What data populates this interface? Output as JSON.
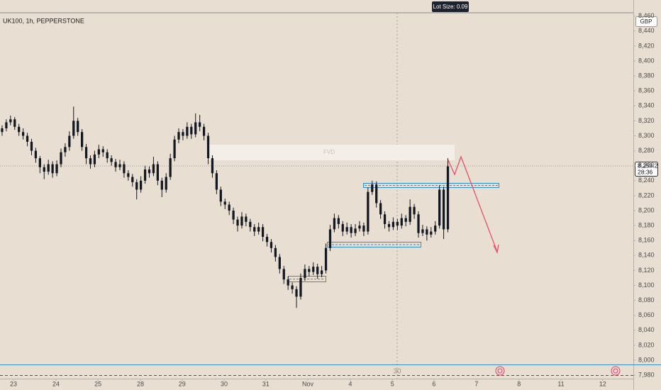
{
  "chart_data": {
    "type": "candlestick",
    "title": "UK100, 1h, PEPPERSTONE",
    "currency": "GBP",
    "lot_size_label": "Lot Size: 0.09",
    "last_price_label": "8,259.2",
    "countdown": "28:36",
    "zone_label": "FVD",
    "bottom_label": "30",
    "color": "#131722",
    "grid": false,
    "xlim": [
      0,
      150.6
    ],
    "ylim": [
      7975.4,
      8481.5
    ],
    "yticks": [
      {
        "value": 7980,
        "label": "7,980"
      },
      {
        "value": 8000,
        "label": "8,000"
      },
      {
        "value": 8020,
        "label": "8,020"
      },
      {
        "value": 8040,
        "label": "8,040"
      },
      {
        "value": 8060,
        "label": "8,060"
      },
      {
        "value": 8080,
        "label": "8,080"
      },
      {
        "value": 8100,
        "label": "8,100"
      },
      {
        "value": 8120,
        "label": "8,120"
      },
      {
        "value": 8140,
        "label": "8,140"
      },
      {
        "value": 8160,
        "label": "8,160"
      },
      {
        "value": 8180,
        "label": "8,180"
      },
      {
        "value": 8200,
        "label": "8,200"
      },
      {
        "value": 8220,
        "label": "8,220"
      },
      {
        "value": 8240,
        "label": "8,240"
      },
      {
        "value": 8260,
        "label": "8,260"
      },
      {
        "value": 8280,
        "label": "8,280"
      },
      {
        "value": 8300,
        "label": "8,300"
      },
      {
        "value": 8320,
        "label": "8,320"
      },
      {
        "value": 8340,
        "label": "8,340"
      },
      {
        "value": 8360,
        "label": "8,360"
      },
      {
        "value": 8380,
        "label": "8,380"
      },
      {
        "value": 8400,
        "label": "8,400"
      },
      {
        "value": 8420,
        "label": "8,420"
      },
      {
        "value": 8440,
        "label": "8,440"
      },
      {
        "value": 8460,
        "label": "8,460"
      }
    ],
    "xticks": [
      {
        "value": 3.2,
        "label": "23"
      },
      {
        "value": 13.3,
        "label": "24"
      },
      {
        "value": 23.3,
        "label": "25"
      },
      {
        "value": 33.4,
        "label": "28"
      },
      {
        "value": 43.3,
        "label": "29"
      },
      {
        "value": 53.3,
        "label": "30"
      },
      {
        "value": 63.2,
        "label": "31"
      },
      {
        "value": 73.2,
        "label": "Nov"
      },
      {
        "value": 83.3,
        "label": "4"
      },
      {
        "value": 93.3,
        "label": "5"
      },
      {
        "value": 103.2,
        "label": "6"
      },
      {
        "value": 113.3,
        "label": "7"
      },
      {
        "value": 123.4,
        "label": "8"
      },
      {
        "value": 133.4,
        "label": "11"
      },
      {
        "value": 143.3,
        "label": "12"
      }
    ],
    "ohlc": [
      [
        8305,
        8314,
        8300,
        8310
      ],
      [
        8310,
        8322,
        8306,
        8318
      ],
      [
        8318,
        8327,
        8314,
        8322
      ],
      [
        8322,
        8325,
        8308,
        8312
      ],
      [
        8312,
        8316,
        8300,
        8305
      ],
      [
        8305,
        8310,
        8295,
        8300
      ],
      [
        8300,
        8304,
        8286,
        8292
      ],
      [
        8292,
        8296,
        8274,
        8280
      ],
      [
        8280,
        8284,
        8264,
        8270
      ],
      [
        8270,
        8273,
        8250,
        8258
      ],
      [
        8258,
        8262,
        8242,
        8252
      ],
      [
        8252,
        8268,
        8248,
        8262
      ],
      [
        8262,
        8266,
        8244,
        8250
      ],
      [
        8250,
        8267,
        8246,
        8262
      ],
      [
        8262,
        8283,
        8258,
        8278
      ],
      [
        8278,
        8290,
        8272,
        8285
      ],
      [
        8285,
        8306,
        8280,
        8300
      ],
      [
        8300,
        8339,
        8296,
        8320
      ],
      [
        8320,
        8324,
        8300,
        8305
      ],
      [
        8305,
        8309,
        8280,
        8285
      ],
      [
        8285,
        8289,
        8262,
        8270
      ],
      [
        8270,
        8274,
        8256,
        8262
      ],
      [
        8262,
        8280,
        8258,
        8275
      ],
      [
        8275,
        8288,
        8270,
        8282
      ],
      [
        8282,
        8286,
        8272,
        8278
      ],
      [
        8278,
        8282,
        8264,
        8270
      ],
      [
        8270,
        8274,
        8260,
        8265
      ],
      [
        8265,
        8269,
        8252,
        8258
      ],
      [
        8258,
        8268,
        8254,
        8262
      ],
      [
        8262,
        8266,
        8244,
        8250
      ],
      [
        8250,
        8254,
        8240,
        8245
      ],
      [
        8245,
        8249,
        8232,
        8238
      ],
      [
        8238,
        8242,
        8215,
        8228
      ],
      [
        8228,
        8246,
        8224,
        8240
      ],
      [
        8240,
        8260,
        8236,
        8255
      ],
      [
        8255,
        8259,
        8244,
        8250
      ],
      [
        8250,
        8272,
        8246,
        8262
      ],
      [
        8262,
        8266,
        8234,
        8240
      ],
      [
        8240,
        8244,
        8218,
        8228
      ],
      [
        8228,
        8250,
        8224,
        8245
      ],
      [
        8245,
        8276,
        8241,
        8270
      ],
      [
        8270,
        8300,
        8266,
        8295
      ],
      [
        8295,
        8310,
        8290,
        8305
      ],
      [
        8305,
        8309,
        8294,
        8300
      ],
      [
        8300,
        8318,
        8296,
        8312
      ],
      [
        8312,
        8316,
        8296,
        8302
      ],
      [
        8302,
        8330,
        8298,
        8318
      ],
      [
        8318,
        8328,
        8306,
        8312
      ],
      [
        8312,
        8316,
        8294,
        8300
      ],
      [
        8300,
        8304,
        8262,
        8270
      ],
      [
        8270,
        8274,
        8244,
        8250
      ],
      [
        8250,
        8254,
        8222,
        8228
      ],
      [
        8228,
        8232,
        8206,
        8212
      ],
      [
        8212,
        8216,
        8202,
        8208
      ],
      [
        8208,
        8212,
        8194,
        8200
      ],
      [
        8200,
        8204,
        8182,
        8188
      ],
      [
        8188,
        8192,
        8172,
        8180
      ],
      [
        8180,
        8198,
        8176,
        8192
      ],
      [
        8192,
        8196,
        8179,
        8185
      ],
      [
        8185,
        8189,
        8172,
        8178
      ],
      [
        8178,
        8182,
        8166,
        8172
      ],
      [
        8172,
        8184,
        8168,
        8178
      ],
      [
        8178,
        8182,
        8159,
        8165
      ],
      [
        8165,
        8169,
        8152,
        8158
      ],
      [
        8158,
        8162,
        8144,
        8150
      ],
      [
        8150,
        8154,
        8132,
        8138
      ],
      [
        8138,
        8142,
        8116,
        8122
      ],
      [
        8122,
        8126,
        8102,
        8108
      ],
      [
        8108,
        8112,
        8094,
        8100
      ],
      [
        8100,
        8104,
        8089,
        8095
      ],
      [
        8095,
        8099,
        8070,
        8085
      ],
      [
        8085,
        8116,
        8081,
        8110
      ],
      [
        8110,
        8128,
        8106,
        8122
      ],
      [
        8122,
        8126,
        8112,
        8118
      ],
      [
        8118,
        8131,
        8114,
        8125
      ],
      [
        8125,
        8129,
        8109,
        8115
      ],
      [
        8115,
        8126,
        8111,
        8120
      ],
      [
        8120,
        8156,
        8116,
        8150
      ],
      [
        8150,
        8181,
        8146,
        8175
      ],
      [
        8175,
        8196,
        8171,
        8190
      ],
      [
        8190,
        8194,
        8176,
        8182
      ],
      [
        8182,
        8186,
        8166,
        8172
      ],
      [
        8172,
        8184,
        8168,
        8178
      ],
      [
        8178,
        8182,
        8164,
        8170
      ],
      [
        8170,
        8182,
        8166,
        8176
      ],
      [
        8176,
        8186,
        8172,
        8180
      ],
      [
        8180,
        8184,
        8166,
        8172
      ],
      [
        8172,
        8231,
        8168,
        8225
      ],
      [
        8225,
        8240,
        8221,
        8235
      ],
      [
        8235,
        8239,
        8204,
        8210
      ],
      [
        8210,
        8214,
        8189,
        8195
      ],
      [
        8195,
        8199,
        8176,
        8182
      ],
      [
        8182,
        8186,
        8172,
        8178
      ],
      [
        8178,
        8191,
        8174,
        8185
      ],
      [
        8185,
        8189,
        8174,
        8180
      ],
      [
        8180,
        8196,
        8176,
        8190
      ],
      [
        8190,
        8194,
        8179,
        8185
      ],
      [
        8185,
        8215,
        8181,
        8205
      ],
      [
        8205,
        8209,
        8189,
        8195
      ],
      [
        8195,
        8199,
        8164,
        8170
      ],
      [
        8170,
        8181,
        8166,
        8175
      ],
      [
        8175,
        8179,
        8160,
        8168
      ],
      [
        8168,
        8178,
        8164,
        8172
      ],
      [
        8172,
        8186,
        8168,
        8180
      ],
      [
        8180,
        8234,
        8176,
        8228
      ],
      [
        8228,
        8232,
        8162,
        8175
      ],
      [
        8175,
        8270,
        8171,
        8259.2
      ]
    ]
  }
}
